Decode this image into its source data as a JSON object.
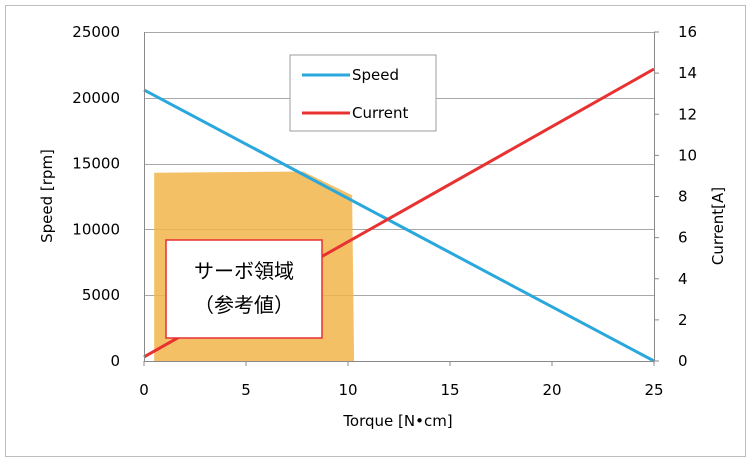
{
  "chart_data": {
    "type": "line",
    "xlabel": "Torque [N•cm]",
    "ylabel": "Speed [rpm]",
    "y2label": "Current[A]",
    "xlim": [
      0,
      25
    ],
    "ylim": [
      0,
      25000
    ],
    "y2lim": [
      0,
      16
    ],
    "x_ticks": [
      0,
      5,
      10,
      15,
      20,
      25
    ],
    "y_ticks": [
      0,
      5000,
      10000,
      15000,
      20000,
      25000
    ],
    "y2_ticks": [
      0,
      2,
      4,
      6,
      8,
      10,
      12,
      14,
      16
    ],
    "grid": true,
    "legend_position": "top-center",
    "series": [
      {
        "name": "Speed",
        "axis": "left",
        "color": "#2aa7dc",
        "x": [
          0,
          25
        ],
        "y": [
          20600,
          0
        ]
      },
      {
        "name": "Current",
        "axis": "right",
        "color": "#e83131",
        "x": [
          0,
          25
        ],
        "y": [
          0.2,
          14.2
        ]
      }
    ],
    "servo_region": {
      "color": "#f2b54a",
      "polygon": [
        [
          0.5,
          14300
        ],
        [
          7.8,
          14400
        ],
        [
          10.2,
          12600
        ],
        [
          10.3,
          0
        ],
        [
          0.5,
          0
        ]
      ]
    },
    "annotation": {
      "line1": "サーボ領域",
      "line2": "（参考値）",
      "border_color": "#e83131"
    }
  }
}
